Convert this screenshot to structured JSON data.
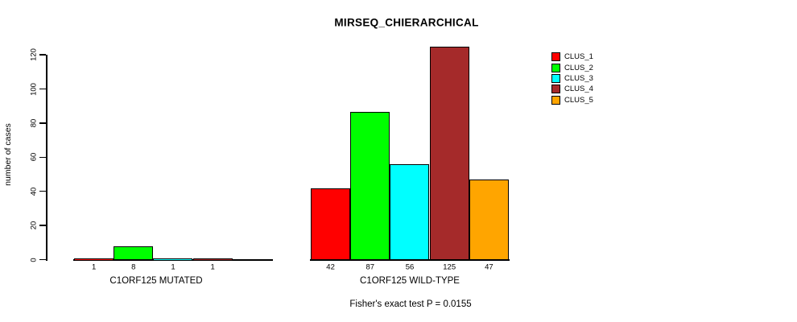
{
  "chart_data": {
    "type": "bar",
    "title": "MIRSEQ_CHIERARCHICAL",
    "ylabel": "number of cases",
    "ylim": [
      0,
      130
    ],
    "yticks": [
      0,
      20,
      40,
      60,
      80,
      100,
      120
    ],
    "grid": false,
    "legend_position": "top-right",
    "legend": [
      {
        "label": "CLUS_1",
        "color": "#ff0000"
      },
      {
        "label": "CLUS_2",
        "color": "#00ff00"
      },
      {
        "label": "CLUS_3",
        "color": "#00ffff"
      },
      {
        "label": "CLUS_4",
        "color": "#a52a2a"
      },
      {
        "label": "CLUS_5",
        "color": "#ffa500"
      }
    ],
    "groups": [
      {
        "label": "C1ORF125 MUTATED",
        "values": [
          1,
          8,
          1,
          1,
          0
        ],
        "value_labels": [
          "1",
          "8",
          "1",
          "1",
          ""
        ]
      },
      {
        "label": "C1ORF125 WILD-TYPE",
        "values": [
          42,
          87,
          56,
          125,
          47
        ],
        "value_labels": [
          "42",
          "87",
          "56",
          "125",
          "47"
        ]
      }
    ],
    "footnote": "Fisher's exact test P = 0.0155"
  }
}
